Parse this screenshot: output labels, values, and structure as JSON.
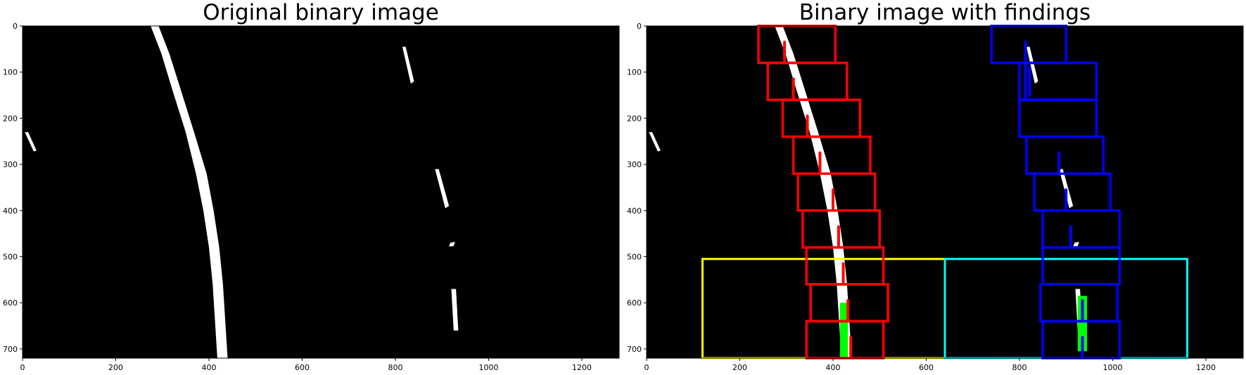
{
  "chart_data": [
    {
      "type": "image",
      "title": "Original binary image",
      "xlim": [
        0,
        1280
      ],
      "ylim": [
        720,
        0
      ],
      "xticks": [
        0,
        200,
        400,
        600,
        800,
        1000,
        1200
      ],
      "yticks": [
        0,
        100,
        200,
        300,
        400,
        500,
        600,
        700
      ],
      "background_color": "#000000",
      "pixel_color": "#ffffff",
      "blobs": [
        {
          "name": "left-lane",
          "points": [
            [
              275,
              0
            ],
            [
              292,
              0
            ],
            [
              315,
              60
            ],
            [
              340,
              140
            ],
            [
              368,
              230
            ],
            [
              395,
              320
            ],
            [
              410,
              400
            ],
            [
              422,
              480
            ],
            [
              430,
              560
            ],
            [
              435,
              640
            ],
            [
              440,
              720
            ],
            [
              418,
              720
            ],
            [
              413,
              640
            ],
            [
              408,
              560
            ],
            [
              400,
              480
            ],
            [
              388,
              400
            ],
            [
              372,
              320
            ],
            [
              350,
              230
            ],
            [
              322,
              140
            ],
            [
              298,
              60
            ]
          ]
        },
        {
          "name": "right-dash-top",
          "points": [
            [
              815,
              45
            ],
            [
              822,
              45
            ],
            [
              840,
              120
            ],
            [
              833,
              125
            ]
          ]
        },
        {
          "name": "right-dash-mid",
          "points": [
            [
              885,
              310
            ],
            [
              893,
              310
            ],
            [
              915,
              390
            ],
            [
              907,
              395
            ]
          ]
        },
        {
          "name": "right-dash-low",
          "points": [
            [
              918,
              470
            ],
            [
              928,
              468
            ],
            [
              925,
              477
            ],
            [
              915,
              478
            ]
          ]
        },
        {
          "name": "right-dash-bottom",
          "points": [
            [
              920,
              570
            ],
            [
              930,
              570
            ],
            [
              935,
              660
            ],
            [
              925,
              660
            ]
          ]
        },
        {
          "name": "left-edge-speck",
          "points": [
            [
              5,
              230
            ],
            [
              12,
              230
            ],
            [
              30,
              270
            ],
            [
              24,
              272
            ]
          ]
        }
      ]
    },
    {
      "type": "image",
      "title": "Binary image with findings",
      "xlim": [
        0,
        1280
      ],
      "ylim": [
        720,
        0
      ],
      "xticks": [
        0,
        200,
        400,
        600,
        800,
        1000,
        1200
      ],
      "yticks": [
        0,
        100,
        200,
        300,
        400,
        500,
        600,
        700
      ],
      "background_color": "#000000",
      "pixel_color": "#ffffff",
      "blobs_same_as_original": true,
      "search_regions": [
        {
          "name": "left-search-region",
          "color": "#ffff00",
          "x0": 120,
          "x1": 640,
          "y0": 505,
          "y1": 720
        },
        {
          "name": "right-search-region",
          "color": "#00ffff",
          "x0": 640,
          "x1": 1160,
          "y0": 505,
          "y1": 720
        }
      ],
      "histogram_hits": [
        {
          "name": "left-peak",
          "color": "#00ff00",
          "x0": 415,
          "x1": 432,
          "y0": 600,
          "y1": 720
        },
        {
          "name": "right-peak",
          "color": "#00ff00",
          "x0": 925,
          "x1": 945,
          "y0": 585,
          "y1": 705
        }
      ],
      "windows": [
        {
          "lane": "left",
          "color": "#ff0000",
          "x0": 240,
          "x1": 405,
          "y0": 0,
          "y1": 80
        },
        {
          "lane": "left",
          "color": "#ff0000",
          "x0": 260,
          "x1": 430,
          "y0": 80,
          "y1": 160
        },
        {
          "lane": "left",
          "color": "#ff0000",
          "x0": 292,
          "x1": 458,
          "y0": 160,
          "y1": 240
        },
        {
          "lane": "left",
          "color": "#ff0000",
          "x0": 315,
          "x1": 480,
          "y0": 240,
          "y1": 320
        },
        {
          "lane": "left",
          "color": "#ff0000",
          "x0": 325,
          "x1": 490,
          "y0": 320,
          "y1": 400
        },
        {
          "lane": "left",
          "color": "#ff0000",
          "x0": 335,
          "x1": 500,
          "y0": 400,
          "y1": 480
        },
        {
          "lane": "left",
          "color": "#ff0000",
          "x0": 343,
          "x1": 508,
          "y0": 480,
          "y1": 560
        },
        {
          "lane": "left",
          "color": "#ff0000",
          "x0": 352,
          "x1": 518,
          "y0": 560,
          "y1": 640
        },
        {
          "lane": "left",
          "color": "#ff0000",
          "x0": 343,
          "x1": 508,
          "y0": 640,
          "y1": 720
        },
        {
          "lane": "right",
          "color": "#0000ff",
          "x0": 740,
          "x1": 900,
          "y0": 0,
          "y1": 80
        },
        {
          "lane": "right",
          "color": "#0000ff",
          "x0": 800,
          "x1": 965,
          "y0": 80,
          "y1": 160
        },
        {
          "lane": "right",
          "color": "#0000ff",
          "x0": 800,
          "x1": 965,
          "y0": 160,
          "y1": 240
        },
        {
          "lane": "right",
          "color": "#0000ff",
          "x0": 815,
          "x1": 980,
          "y0": 240,
          "y1": 320
        },
        {
          "lane": "right",
          "color": "#0000ff",
          "x0": 832,
          "x1": 995,
          "y0": 320,
          "y1": 400
        },
        {
          "lane": "right",
          "color": "#0000ff",
          "x0": 850,
          "x1": 1015,
          "y0": 400,
          "y1": 480
        },
        {
          "lane": "right",
          "color": "#0000ff",
          "x0": 850,
          "x1": 1015,
          "y0": 480,
          "y1": 560
        },
        {
          "lane": "right",
          "color": "#0000ff",
          "x0": 845,
          "x1": 1010,
          "y0": 560,
          "y1": 640
        },
        {
          "lane": "right",
          "color": "#0000ff",
          "x0": 850,
          "x1": 1015,
          "y0": 640,
          "y1": 720
        }
      ],
      "marker_segments": [
        {
          "lane": "left",
          "color": "#ff0000",
          "x": 296,
          "y0": 35,
          "y1": 75
        },
        {
          "lane": "left",
          "color": "#ff0000",
          "x": 315,
          "y0": 115,
          "y1": 155
        },
        {
          "lane": "left",
          "color": "#ff0000",
          "x": 345,
          "y0": 195,
          "y1": 235
        },
        {
          "lane": "left",
          "color": "#ff0000",
          "x": 372,
          "y0": 275,
          "y1": 315
        },
        {
          "lane": "left",
          "color": "#ff0000",
          "x": 400,
          "y0": 355,
          "y1": 395
        },
        {
          "lane": "left",
          "color": "#ff0000",
          "x": 412,
          "y0": 435,
          "y1": 475
        },
        {
          "lane": "left",
          "color": "#ff0000",
          "x": 422,
          "y0": 515,
          "y1": 555
        },
        {
          "lane": "left",
          "color": "#ff0000",
          "x": 432,
          "y0": 595,
          "y1": 635
        },
        {
          "lane": "left",
          "color": "#ff0000",
          "x": 438,
          "y0": 675,
          "y1": 715
        },
        {
          "lane": "right",
          "color": "#0000ff",
          "x": 813,
          "y0": 35,
          "y1": 155
        },
        {
          "lane": "right",
          "color": "#0000ff",
          "x": 822,
          "y0": 90,
          "y1": 150
        },
        {
          "lane": "right",
          "color": "#0000ff",
          "x": 885,
          "y0": 275,
          "y1": 315
        },
        {
          "lane": "right",
          "color": "#0000ff",
          "x": 900,
          "y0": 355,
          "y1": 395
        },
        {
          "lane": "right",
          "color": "#0000ff",
          "x": 910,
          "y0": 435,
          "y1": 475
        },
        {
          "lane": "right",
          "color": "#0000ff",
          "x": 935,
          "y0": 595,
          "y1": 635
        },
        {
          "lane": "right",
          "color": "#0000ff",
          "x": 935,
          "y0": 675,
          "y1": 715
        }
      ]
    }
  ]
}
